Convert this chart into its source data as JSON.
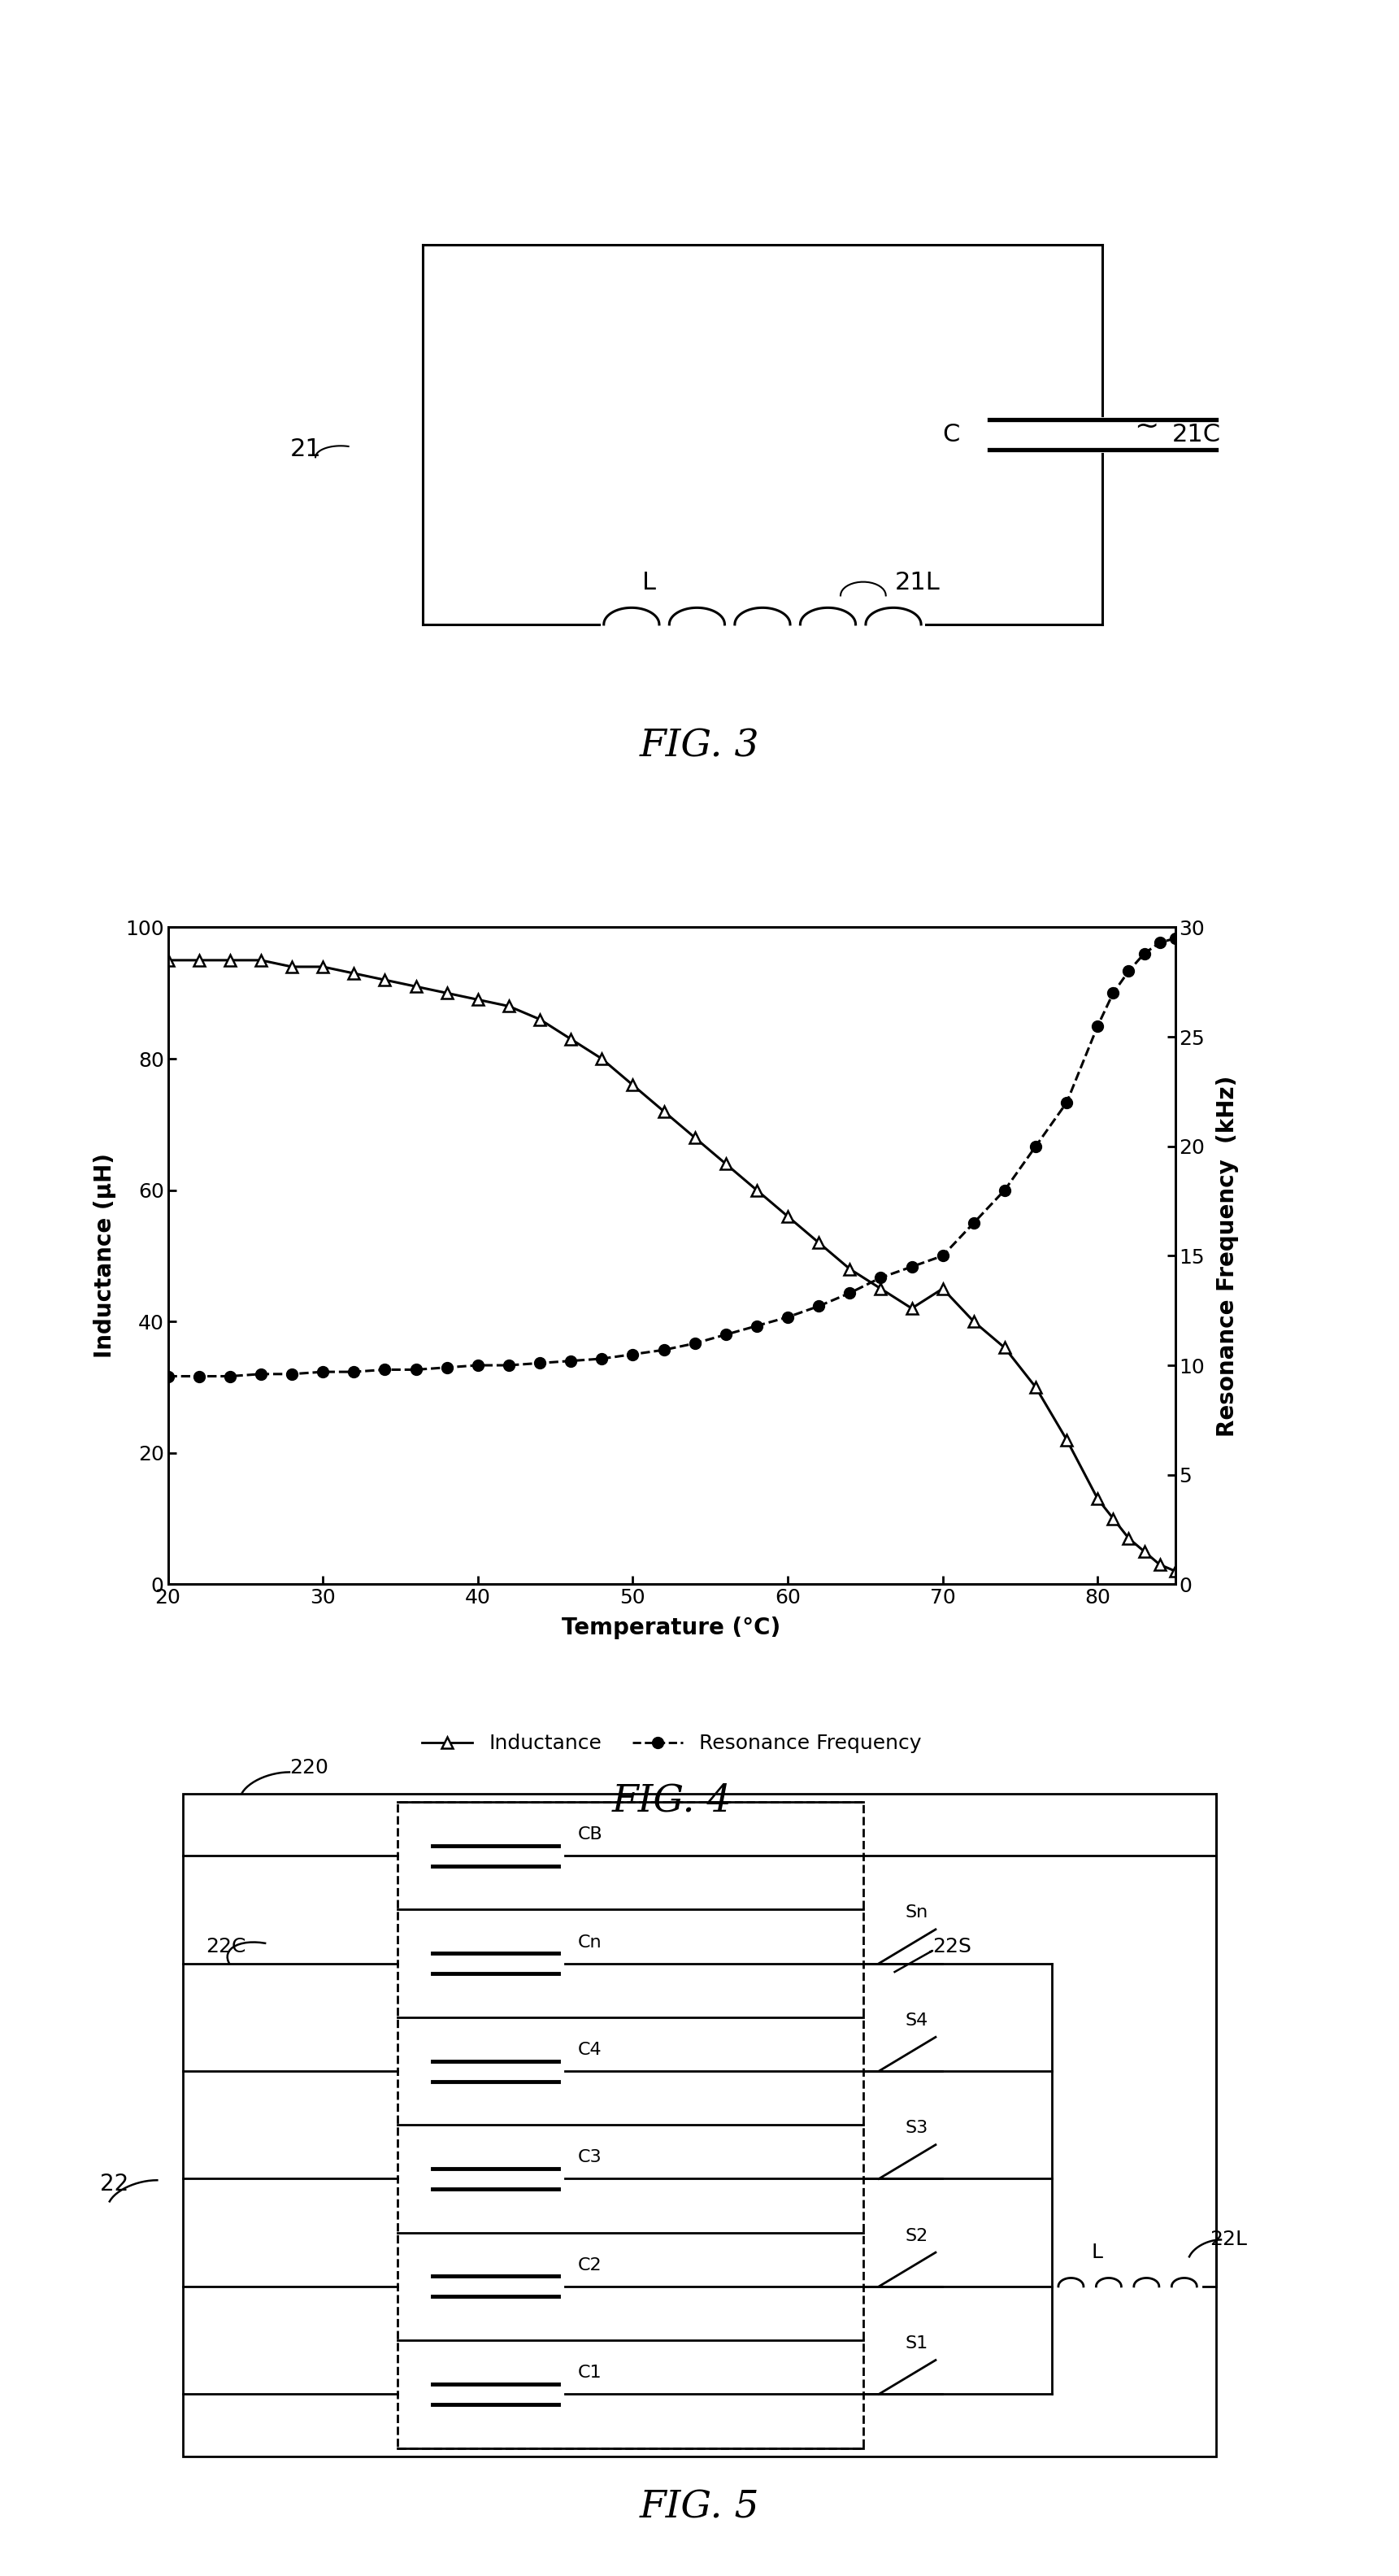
{
  "fig3": {
    "title": "FIG. 3",
    "label_21": "21",
    "label_C": "C",
    "label_21C": "21C",
    "label_L": "L",
    "label_21L": "21L"
  },
  "fig4": {
    "title": "FIG. 4",
    "xlabel": "Temperature (°C)",
    "ylabel_left": "Inductance (μH)",
    "ylabel_right": "Resonance Frequency  (kHz)",
    "xlim": [
      20,
      85
    ],
    "ylim_left": [
      0,
      100
    ],
    "ylim_right": [
      0,
      30
    ],
    "xticks": [
      20,
      30,
      40,
      50,
      60,
      70,
      80
    ],
    "yticks_left": [
      0,
      20,
      40,
      60,
      80,
      100
    ],
    "yticks_right": [
      0,
      5,
      10,
      15,
      20,
      25,
      30
    ],
    "inductance_T": [
      20,
      22,
      24,
      26,
      28,
      30,
      32,
      34,
      36,
      38,
      40,
      42,
      44,
      46,
      48,
      50,
      52,
      54,
      56,
      58,
      60,
      62,
      64,
      66,
      68,
      70,
      72,
      74,
      76,
      78,
      80,
      81,
      82,
      83,
      84,
      85
    ],
    "inductance_L": [
      95,
      95,
      95,
      95,
      94,
      94,
      93,
      92,
      91,
      90,
      89,
      88,
      86,
      83,
      80,
      76,
      72,
      68,
      64,
      60,
      56,
      52,
      48,
      45,
      42,
      45,
      40,
      36,
      30,
      22,
      13,
      10,
      7,
      5,
      3,
      2
    ],
    "resonance_T": [
      20,
      22,
      24,
      26,
      28,
      30,
      32,
      34,
      36,
      38,
      40,
      42,
      44,
      46,
      48,
      50,
      52,
      54,
      56,
      58,
      60,
      62,
      64,
      66,
      68,
      70,
      72,
      74,
      76,
      78,
      80,
      81,
      82,
      83,
      84,
      85
    ],
    "resonance_F": [
      9.5,
      9.5,
      9.5,
      9.6,
      9.6,
      9.7,
      9.7,
      9.8,
      9.8,
      9.9,
      10.0,
      10.0,
      10.1,
      10.2,
      10.3,
      10.5,
      10.7,
      11.0,
      11.4,
      11.8,
      12.2,
      12.7,
      13.3,
      14.0,
      14.5,
      15.0,
      16.5,
      18.0,
      20.0,
      22.0,
      25.5,
      27.0,
      28.0,
      28.8,
      29.3,
      29.5
    ],
    "legend_inductance": "Inductance",
    "legend_resonance": "Resonance Frequency"
  },
  "fig5": {
    "title": "FIG. 5",
    "label_220": "220",
    "label_22C": "22C",
    "label_22S": "22S",
    "label_22L": "22L",
    "label_22": "22",
    "label_L": "L",
    "caps": [
      "C1",
      "C2",
      "C3",
      "C4",
      "Cn",
      "CB"
    ],
    "switches": [
      "S1",
      "S2",
      "S3",
      "S4",
      "Sn"
    ]
  },
  "background_color": "#ffffff"
}
